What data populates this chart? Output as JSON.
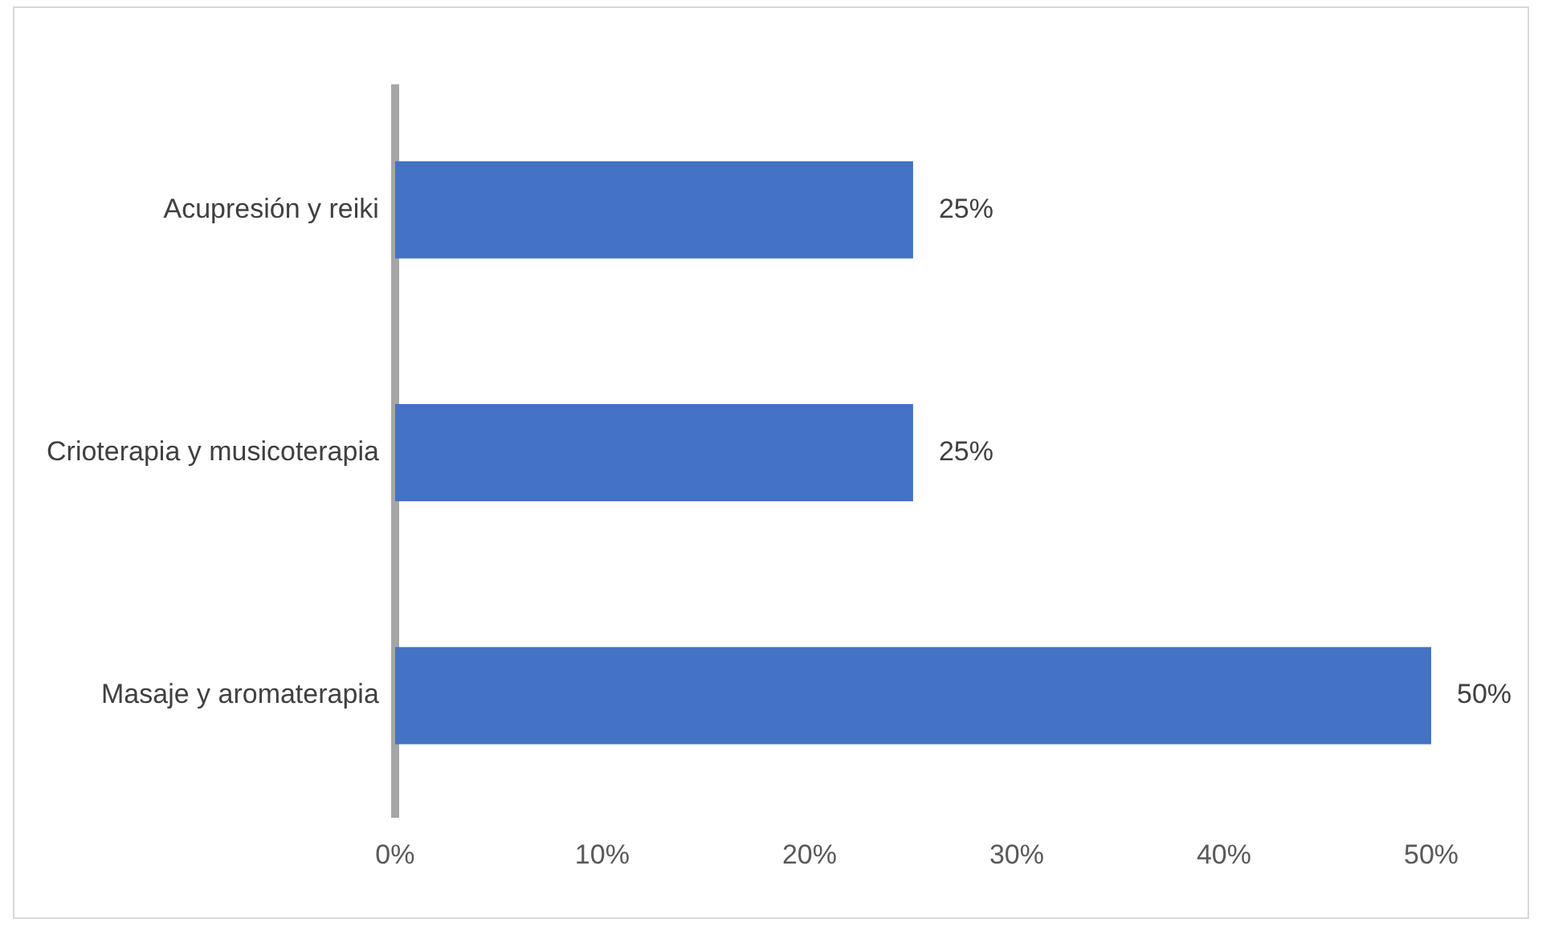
{
  "chart_data": {
    "type": "bar",
    "orientation": "horizontal",
    "categories": [
      "Acupresión y reiki",
      "Crioterapia y musicoterapia",
      "Masaje y aromaterapia"
    ],
    "values": [
      25,
      25,
      50
    ],
    "value_labels": [
      "25%",
      "25%",
      "50%"
    ],
    "color": "#4472c4",
    "xlim": [
      0,
      50
    ],
    "xticks": [
      {
        "value": 0,
        "label": "0%"
      },
      {
        "value": 10,
        "label": "10%"
      },
      {
        "value": 20,
        "label": "20%"
      },
      {
        "value": 30,
        "label": "30%"
      },
      {
        "value": 40,
        "label": "40%"
      },
      {
        "value": 50,
        "label": "50%"
      }
    ],
    "grid": false,
    "legend": false
  }
}
